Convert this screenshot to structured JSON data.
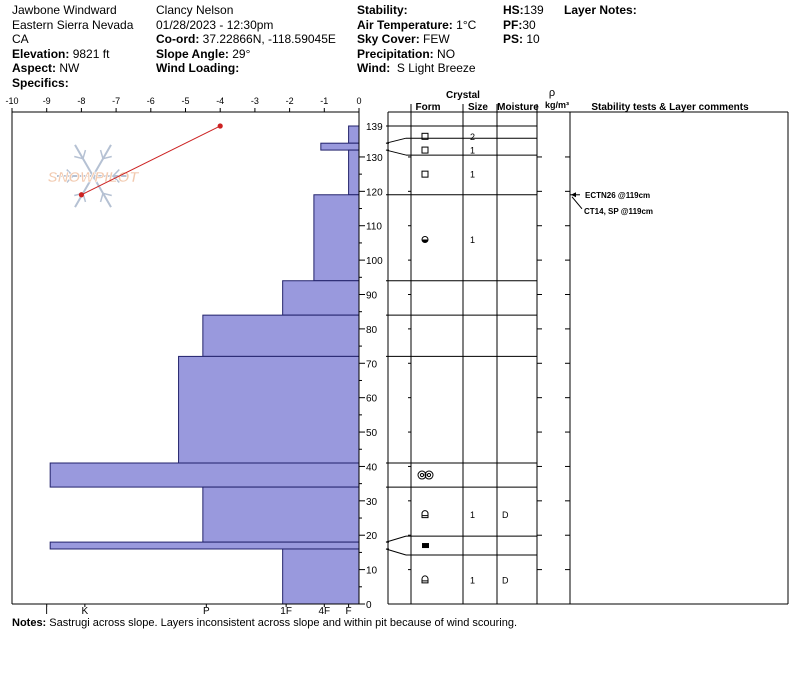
{
  "header": {
    "location": "Jawbone Windward",
    "range": "Eastern Sierra Nevada",
    "state": "CA",
    "elevation_label": "Elevation:",
    "elevation": "9821 ft",
    "aspect_label": "Aspect:",
    "aspect": "NW",
    "specifics_label": "Specifics:",
    "observer": "Clancy Nelson",
    "datetime": "01/28/2023 - 12:30pm",
    "coord_label": "Co-ord:",
    "coord": "37.22866N, -118.59045E",
    "slope_label": "Slope Angle:",
    "slope": "29°",
    "wind_loading_label": "Wind Loading:",
    "stability_label": "Stability:",
    "air_temp_label": "Air Temperature:",
    "air_temp": "1°C",
    "sky_label": "Sky Cover:",
    "sky": "FEW",
    "precip_label": "Precipitation:",
    "precip": "NO",
    "wind_label": "Wind:",
    "wind": "S Light Breeze",
    "hs_label": "HS:",
    "hs": "139",
    "pf_label": "PF:",
    "pf": "30",
    "ps_label": "PS:",
    "ps": "10",
    "layer_notes_label": "Layer Notes:"
  },
  "notes_label": "Notes:",
  "notes": "Sastrugi across slope. Layers inconsistent across slope and within pit because of wind scouring.",
  "watermark": "SNOWPILOT",
  "colors": {
    "bar_fill": "#9999dd",
    "bar_stroke": "#22226b",
    "temp": "#cc2222",
    "watermark": "#e8a070"
  },
  "chart_data": {
    "type": "snow_profile",
    "temperature_axis": {
      "min": -10,
      "max": 0,
      "ticks": [
        -10,
        -9,
        -8,
        -7,
        -6,
        -5,
        -4,
        -3,
        -2,
        -1,
        0
      ]
    },
    "height_axis": {
      "min": 0,
      "max": 139,
      "unit": "cm",
      "ticks": [
        0,
        10,
        20,
        30,
        40,
        50,
        60,
        70,
        80,
        90,
        100,
        110,
        120,
        130,
        139
      ]
    },
    "hardness_axis": {
      "labels": [
        "I",
        "K",
        "P",
        "1F",
        "4F",
        "F"
      ],
      "values": [
        -9,
        -7.9,
        -4.4,
        -2.1,
        -1.0,
        -0.3
      ]
    },
    "temperature_profile": [
      {
        "t": -4,
        "h": 139
      },
      {
        "t": -8,
        "h": 119
      }
    ],
    "hardness_layers": [
      {
        "top": 139,
        "bottom": 134,
        "hardness": -0.3
      },
      {
        "top": 134,
        "bottom": 132,
        "hardness": -1.1
      },
      {
        "top": 132,
        "bottom": 119,
        "hardness": -0.3
      },
      {
        "top": 119,
        "bottom": 94,
        "hardness": -1.3
      },
      {
        "top": 94,
        "bottom": 84,
        "hardness": -2.2
      },
      {
        "top": 84,
        "bottom": 72,
        "hardness": -4.5
      },
      {
        "top": 72,
        "bottom": 41,
        "hardness": -5.2
      },
      {
        "top": 41,
        "bottom": 34,
        "hardness": -8.9
      },
      {
        "top": 34,
        "bottom": 18,
        "hardness": -4.5
      },
      {
        "top": 18,
        "bottom": 16,
        "hardness": -8.9
      },
      {
        "top": 16,
        "bottom": 0,
        "hardness": -2.2
      }
    ],
    "column_headers": {
      "crystal": "Crystal",
      "form": "Form",
      "size": "Size",
      "moisture": "Moisture",
      "rho": "ρ",
      "density_unit": "kg/m³",
      "tests": "Stability tests & Layer comments"
    },
    "layer_boundaries": [
      139,
      134,
      132,
      119,
      94,
      84,
      72,
      41,
      34,
      18,
      16,
      0
    ],
    "crystal_rows": [
      {
        "h": 136,
        "form": "faceted",
        "size": "2",
        "moisture": ""
      },
      {
        "h": 132,
        "form": "faceted",
        "size": "1",
        "moisture": ""
      },
      {
        "h": 125,
        "form": "faceted",
        "size": "1",
        "moisture": ""
      },
      {
        "h": 106,
        "form": "rounding-faceted",
        "size": "1",
        "moisture": ""
      },
      {
        "h": 37.5,
        "form": "surface-hoar",
        "size": "",
        "moisture": ""
      },
      {
        "h": 26,
        "form": "depth-hoar",
        "size": "1",
        "moisture": "D"
      },
      {
        "h": 17,
        "form": "ice-layer",
        "size": "",
        "moisture": ""
      },
      {
        "h": 7,
        "form": "depth-hoar",
        "size": "1",
        "moisture": "D"
      }
    ],
    "stability_tests": [
      {
        "h": 119,
        "text": "ECTN26 @119cm"
      },
      {
        "h": 119,
        "text": "CT14, SP @119cm"
      }
    ]
  }
}
